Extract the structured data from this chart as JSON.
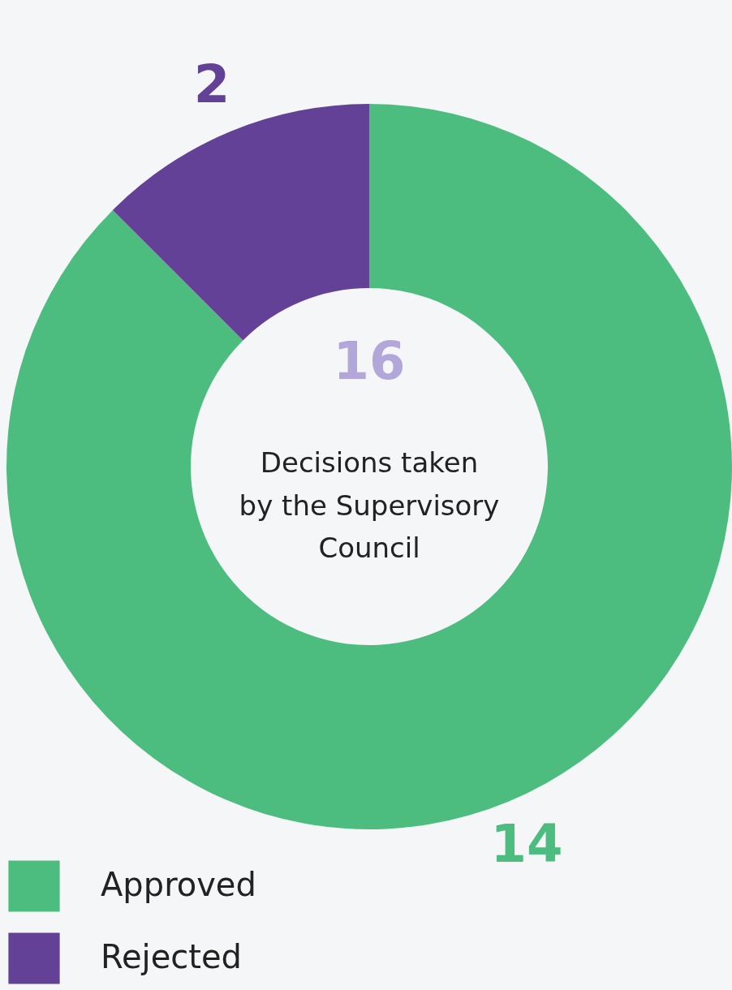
{
  "chart_data": {
    "type": "donut",
    "categories": [
      "Approved",
      "Rejected"
    ],
    "values": [
      14,
      2
    ],
    "colors": [
      "#4dbd7f",
      "#634196"
    ],
    "data_labels": true,
    "legend": "bottom left",
    "annotations": [
      "16",
      "Decisions taken\nby the Supervisory\nCouncil"
    ]
  }
}
